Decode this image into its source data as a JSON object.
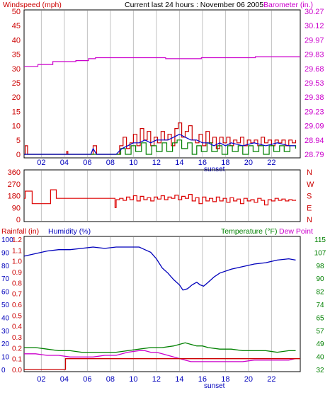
{
  "header": {
    "title": "Current last 24 hours : November 06 2005",
    "left_label": "Windspeed (mph)",
    "right_label": "Barometer (in.)"
  },
  "colors": {
    "background": "#ffffff",
    "panel_border": "#000000",
    "grid_vertical": "#c0c0c0",
    "wind_speed": "#cc0000",
    "wind_avg": "#0000cc",
    "wind_gust": "#008000",
    "barometer": "#cc00cc",
    "wind_dir": "#dd0000",
    "rain": "#cc0000",
    "humidity": "#0000bb",
    "temperature": "#008000",
    "dew_point": "#cc00cc",
    "axis_red": "#cc0000",
    "axis_purple": "#cc00cc",
    "axis_blue": "#0000bb",
    "axis_green": "#008000"
  },
  "x_axis": {
    "ticks": [
      "02",
      "04",
      "06",
      "08",
      "10",
      "12",
      "14",
      "16",
      "18",
      "20",
      "22"
    ],
    "sunset_label": "sunset"
  },
  "chart_data": [
    {
      "type": "line",
      "name": "wind-barometer",
      "y_left_label": "Windspeed (mph)",
      "y_left_ticks": [
        "50",
        "45",
        "40",
        "35",
        "30",
        "25",
        "20",
        "15",
        "10",
        "5",
        "0"
      ],
      "y_left_range": [
        0,
        50
      ],
      "y_right_label": "Barometer (in.)",
      "y_right_ticks": [
        "30.27",
        "30.12",
        "29.97",
        "29.83",
        "29.68",
        "29.53",
        "29.38",
        "29.23",
        "29.09",
        "28.94",
        "28.79"
      ],
      "y_right_range": [
        28.79,
        30.27
      ],
      "x_range": [
        0,
        24
      ],
      "barometer": [
        [
          0,
          29.7
        ],
        [
          1.2,
          29.72
        ],
        [
          2.5,
          29.75
        ],
        [
          4.5,
          29.76
        ],
        [
          5.6,
          29.78
        ],
        [
          6.2,
          29.79
        ],
        [
          7.5,
          29.79
        ],
        [
          9.5,
          29.79
        ],
        [
          11.8,
          29.79
        ],
        [
          12.3,
          29.78
        ],
        [
          15.2,
          29.78
        ],
        [
          15.4,
          29.79
        ],
        [
          19.8,
          29.79
        ],
        [
          20.1,
          29.8
        ],
        [
          24,
          29.8
        ]
      ],
      "wind_speed": [
        [
          0,
          0
        ],
        [
          0.1,
          3
        ],
        [
          0.3,
          0
        ],
        [
          3.6,
          0
        ],
        [
          3.7,
          1
        ],
        [
          3.8,
          0
        ],
        [
          5.8,
          0
        ],
        [
          6.0,
          3
        ],
        [
          6.3,
          0
        ],
        [
          8,
          0
        ],
        [
          8.3,
          3
        ],
        [
          8.6,
          6
        ],
        [
          8.9,
          2
        ],
        [
          9.2,
          4
        ],
        [
          9.5,
          7
        ],
        [
          9.8,
          3
        ],
        [
          10.1,
          9
        ],
        [
          10.4,
          5
        ],
        [
          10.7,
          8
        ],
        [
          11,
          3
        ],
        [
          11.3,
          6
        ],
        [
          11.6,
          4
        ],
        [
          11.9,
          8
        ],
        [
          12.2,
          5
        ],
        [
          12.5,
          7
        ],
        [
          12.8,
          3
        ],
        [
          13.1,
          9
        ],
        [
          13.4,
          11
        ],
        [
          13.7,
          6
        ],
        [
          14,
          8
        ],
        [
          14.3,
          10
        ],
        [
          14.6,
          5
        ],
        [
          14.9,
          4
        ],
        [
          15.2,
          7
        ],
        [
          15.5,
          3
        ],
        [
          15.8,
          8
        ],
        [
          16.1,
          4
        ],
        [
          16.4,
          6
        ],
        [
          16.7,
          2
        ],
        [
          17,
          6
        ],
        [
          17.3,
          4
        ],
        [
          17.6,
          6
        ],
        [
          17.9,
          3
        ],
        [
          18.2,
          5
        ],
        [
          18.5,
          4
        ],
        [
          18.8,
          6
        ],
        [
          19.1,
          3
        ],
        [
          19.4,
          5
        ],
        [
          19.7,
          4
        ],
        [
          20,
          5
        ],
        [
          20.3,
          3
        ],
        [
          20.6,
          6
        ],
        [
          20.9,
          4
        ],
        [
          21.2,
          5
        ],
        [
          21.5,
          3
        ],
        [
          21.8,
          5
        ],
        [
          22.1,
          4
        ],
        [
          22.4,
          5
        ],
        [
          22.7,
          3
        ],
        [
          23,
          5
        ],
        [
          23.3,
          4
        ],
        [
          23.6,
          5
        ]
      ],
      "wind_avg": [
        [
          0,
          0
        ],
        [
          5.8,
          0
        ],
        [
          6.0,
          2
        ],
        [
          6.3,
          0
        ],
        [
          8,
          0
        ],
        [
          8.5,
          2
        ],
        [
          9,
          3
        ],
        [
          9.5,
          4
        ],
        [
          10,
          4
        ],
        [
          10.5,
          5
        ],
        [
          11,
          4
        ],
        [
          11.5,
          5
        ],
        [
          12,
          5
        ],
        [
          12.5,
          5
        ],
        [
          13,
          6
        ],
        [
          13.5,
          7
        ],
        [
          14,
          6
        ],
        [
          14.5,
          5
        ],
        [
          15,
          5
        ],
        [
          15.5,
          4
        ],
        [
          16,
          4
        ],
        [
          16.5,
          3
        ],
        [
          17,
          4
        ],
        [
          17.5,
          3
        ],
        [
          18,
          4
        ],
        [
          19,
          3
        ],
        [
          20,
          4
        ],
        [
          21,
          3
        ],
        [
          22,
          4
        ],
        [
          23,
          3
        ],
        [
          23.6,
          3
        ]
      ],
      "wind_gust": [
        [
          0,
          0
        ],
        [
          8,
          0
        ],
        [
          8.4,
          2
        ],
        [
          8.8,
          0
        ],
        [
          9.3,
          3
        ],
        [
          9.7,
          1
        ],
        [
          10.2,
          4
        ],
        [
          10.6,
          0
        ],
        [
          11.1,
          3
        ],
        [
          11.5,
          1
        ],
        [
          12.0,
          4
        ],
        [
          12.4,
          1
        ],
        [
          12.9,
          4
        ],
        [
          13.3,
          5
        ],
        [
          13.7,
          2
        ],
        [
          14.2,
          4
        ],
        [
          14.6,
          0
        ],
        [
          15.0,
          3
        ],
        [
          15.4,
          1
        ],
        [
          15.9,
          4
        ],
        [
          16.3,
          1
        ],
        [
          16.8,
          3
        ],
        [
          17.2,
          0
        ],
        [
          17.7,
          3
        ],
        [
          18.1,
          1
        ],
        [
          18.6,
          3
        ],
        [
          19.0,
          0
        ],
        [
          19.5,
          3
        ],
        [
          19.9,
          1
        ],
        [
          20.4,
          3
        ],
        [
          20.8,
          0
        ],
        [
          21.3,
          3
        ],
        [
          21.7,
          1
        ],
        [
          22.2,
          3
        ],
        [
          22.6,
          1
        ],
        [
          23.1,
          3
        ],
        [
          23.6,
          2
        ]
      ]
    },
    {
      "type": "line",
      "name": "wind-direction",
      "y_left_ticks": [
        "360",
        "270",
        "180",
        "90",
        "0"
      ],
      "y_left_range": [
        0,
        360
      ],
      "y_right_ticks": [
        "N",
        "W",
        "S",
        "E",
        "N"
      ],
      "x_range": [
        0,
        24
      ],
      "direction": [
        [
          0,
          160
        ],
        [
          0.1,
          215
        ],
        [
          0.6,
          215
        ],
        [
          0.7,
          120
        ],
        [
          2.2,
          120
        ],
        [
          2.3,
          225
        ],
        [
          2.7,
          225
        ],
        [
          2.8,
          160
        ],
        [
          7.8,
          160
        ],
        [
          7.9,
          90
        ],
        [
          8.0,
          150
        ],
        [
          8.3,
          160
        ],
        [
          8.6,
          145
        ],
        [
          8.9,
          170
        ],
        [
          9.2,
          150
        ],
        [
          9.5,
          180
        ],
        [
          9.8,
          140
        ],
        [
          10.1,
          175
        ],
        [
          10.4,
          150
        ],
        [
          10.7,
          165
        ],
        [
          11,
          140
        ],
        [
          11.3,
          170
        ],
        [
          11.6,
          155
        ],
        [
          11.9,
          180
        ],
        [
          12.2,
          150
        ],
        [
          12.5,
          170
        ],
        [
          12.8,
          160
        ],
        [
          13.1,
          185
        ],
        [
          13.4,
          150
        ],
        [
          13.7,
          175
        ],
        [
          14,
          160
        ],
        [
          14.3,
          190
        ],
        [
          14.6,
          140
        ],
        [
          14.9,
          165
        ],
        [
          15.2,
          120
        ],
        [
          15.5,
          170
        ],
        [
          15.8,
          140
        ],
        [
          16.1,
          160
        ],
        [
          16.4,
          135
        ],
        [
          16.7,
          170
        ],
        [
          17,
          140
        ],
        [
          17.3,
          160
        ],
        [
          17.6,
          130
        ],
        [
          17.9,
          165
        ],
        [
          18.2,
          140
        ],
        [
          18.5,
          155
        ],
        [
          18.8,
          120
        ],
        [
          19.1,
          160
        ],
        [
          19.4,
          140
        ],
        [
          19.7,
          150
        ],
        [
          20,
          130
        ],
        [
          20.3,
          160
        ],
        [
          20.6,
          145
        ],
        [
          20.9,
          110
        ],
        [
          21.2,
          150
        ],
        [
          21.5,
          140
        ],
        [
          21.8,
          160
        ],
        [
          22.1,
          145
        ],
        [
          22.4,
          155
        ],
        [
          22.7,
          140
        ],
        [
          23,
          150
        ],
        [
          23.3,
          145
        ],
        [
          23.6,
          150
        ]
      ]
    },
    {
      "type": "line",
      "name": "rain-humidity-temperature",
      "labels": {
        "rain": "Rainfall (in)",
        "humidity": "Humidity (%)",
        "temperature": "Temperature (°F)",
        "dew_point": "Dew Point"
      },
      "y_rain_ticks": [
        "1.2",
        "1.1",
        "1.0",
        "0.9",
        "0.8",
        "0.7",
        "0.6",
        "0.5",
        "0.4",
        "0.3",
        "0.2",
        "0.1",
        "0.0"
      ],
      "y_rain_range": [
        0,
        1.2
      ],
      "y_humidity_ticks": [
        "100",
        "90",
        "80",
        "70",
        "60",
        "50",
        "40",
        "30",
        "20",
        "10",
        "0"
      ],
      "y_humidity_range": [
        0,
        100
      ],
      "y_temp_ticks": [
        "115",
        "107",
        "98",
        "90",
        "82",
        "74",
        "65",
        "57",
        "49",
        "40",
        "32"
      ],
      "y_temp_range": [
        32,
        115
      ],
      "x_range": [
        0,
        24
      ],
      "rain": [
        [
          0,
          0
        ],
        [
          3.5,
          0
        ],
        [
          3.6,
          0.1
        ],
        [
          24,
          0.1
        ]
      ],
      "humidity": [
        [
          0,
          87
        ],
        [
          1,
          89
        ],
        [
          2,
          91
        ],
        [
          3,
          92
        ],
        [
          4,
          92
        ],
        [
          5,
          93
        ],
        [
          6,
          94
        ],
        [
          7,
          93
        ],
        [
          8,
          94
        ],
        [
          9,
          94
        ],
        [
          10,
          94
        ],
        [
          10.5,
          92
        ],
        [
          11,
          90
        ],
        [
          11.5,
          85
        ],
        [
          12,
          78
        ],
        [
          12.5,
          74
        ],
        [
          13,
          69
        ],
        [
          13.5,
          65
        ],
        [
          13.8,
          61
        ],
        [
          14.2,
          62
        ],
        [
          14.6,
          65
        ],
        [
          15,
          67
        ],
        [
          15.3,
          65
        ],
        [
          15.6,
          64
        ],
        [
          16,
          67
        ],
        [
          16.5,
          71
        ],
        [
          17,
          74
        ],
        [
          18,
          77
        ],
        [
          19,
          79
        ],
        [
          20,
          81
        ],
        [
          21,
          82
        ],
        [
          22,
          84
        ],
        [
          23,
          85
        ],
        [
          23.6,
          84
        ]
      ],
      "temperature": [
        [
          0,
          46
        ],
        [
          1,
          46
        ],
        [
          2,
          45
        ],
        [
          3,
          44
        ],
        [
          4,
          44
        ],
        [
          5,
          43
        ],
        [
          6,
          43
        ],
        [
          7,
          43
        ],
        [
          8,
          43
        ],
        [
          9,
          44
        ],
        [
          10,
          45
        ],
        [
          11,
          46
        ],
        [
          12,
          46
        ],
        [
          13,
          47
        ],
        [
          13.5,
          48
        ],
        [
          14,
          49
        ],
        [
          14.5,
          48
        ],
        [
          15,
          47
        ],
        [
          15.5,
          47
        ],
        [
          16,
          46
        ],
        [
          17,
          45
        ],
        [
          18,
          45
        ],
        [
          19,
          44
        ],
        [
          20,
          44
        ],
        [
          21,
          44
        ],
        [
          22,
          43
        ],
        [
          23,
          44
        ],
        [
          23.6,
          44
        ]
      ],
      "dew_point": [
        [
          0,
          42
        ],
        [
          1,
          42
        ],
        [
          2,
          41
        ],
        [
          3,
          41
        ],
        [
          4,
          40
        ],
        [
          5,
          40
        ],
        [
          6,
          40
        ],
        [
          7,
          41
        ],
        [
          8,
          41
        ],
        [
          9,
          43
        ],
        [
          10,
          44
        ],
        [
          10.5,
          44
        ],
        [
          11,
          43
        ],
        [
          11.5,
          43
        ],
        [
          12,
          42
        ],
        [
          12.5,
          41
        ],
        [
          13,
          40
        ],
        [
          13.5,
          39
        ],
        [
          14,
          38
        ],
        [
          14.5,
          37
        ],
        [
          15,
          37
        ],
        [
          16,
          37
        ],
        [
          17,
          37
        ],
        [
          18,
          37
        ],
        [
          19,
          37
        ],
        [
          20,
          38
        ],
        [
          21,
          38
        ],
        [
          22,
          38
        ],
        [
          23,
          38
        ],
        [
          23.6,
          39
        ]
      ]
    }
  ]
}
